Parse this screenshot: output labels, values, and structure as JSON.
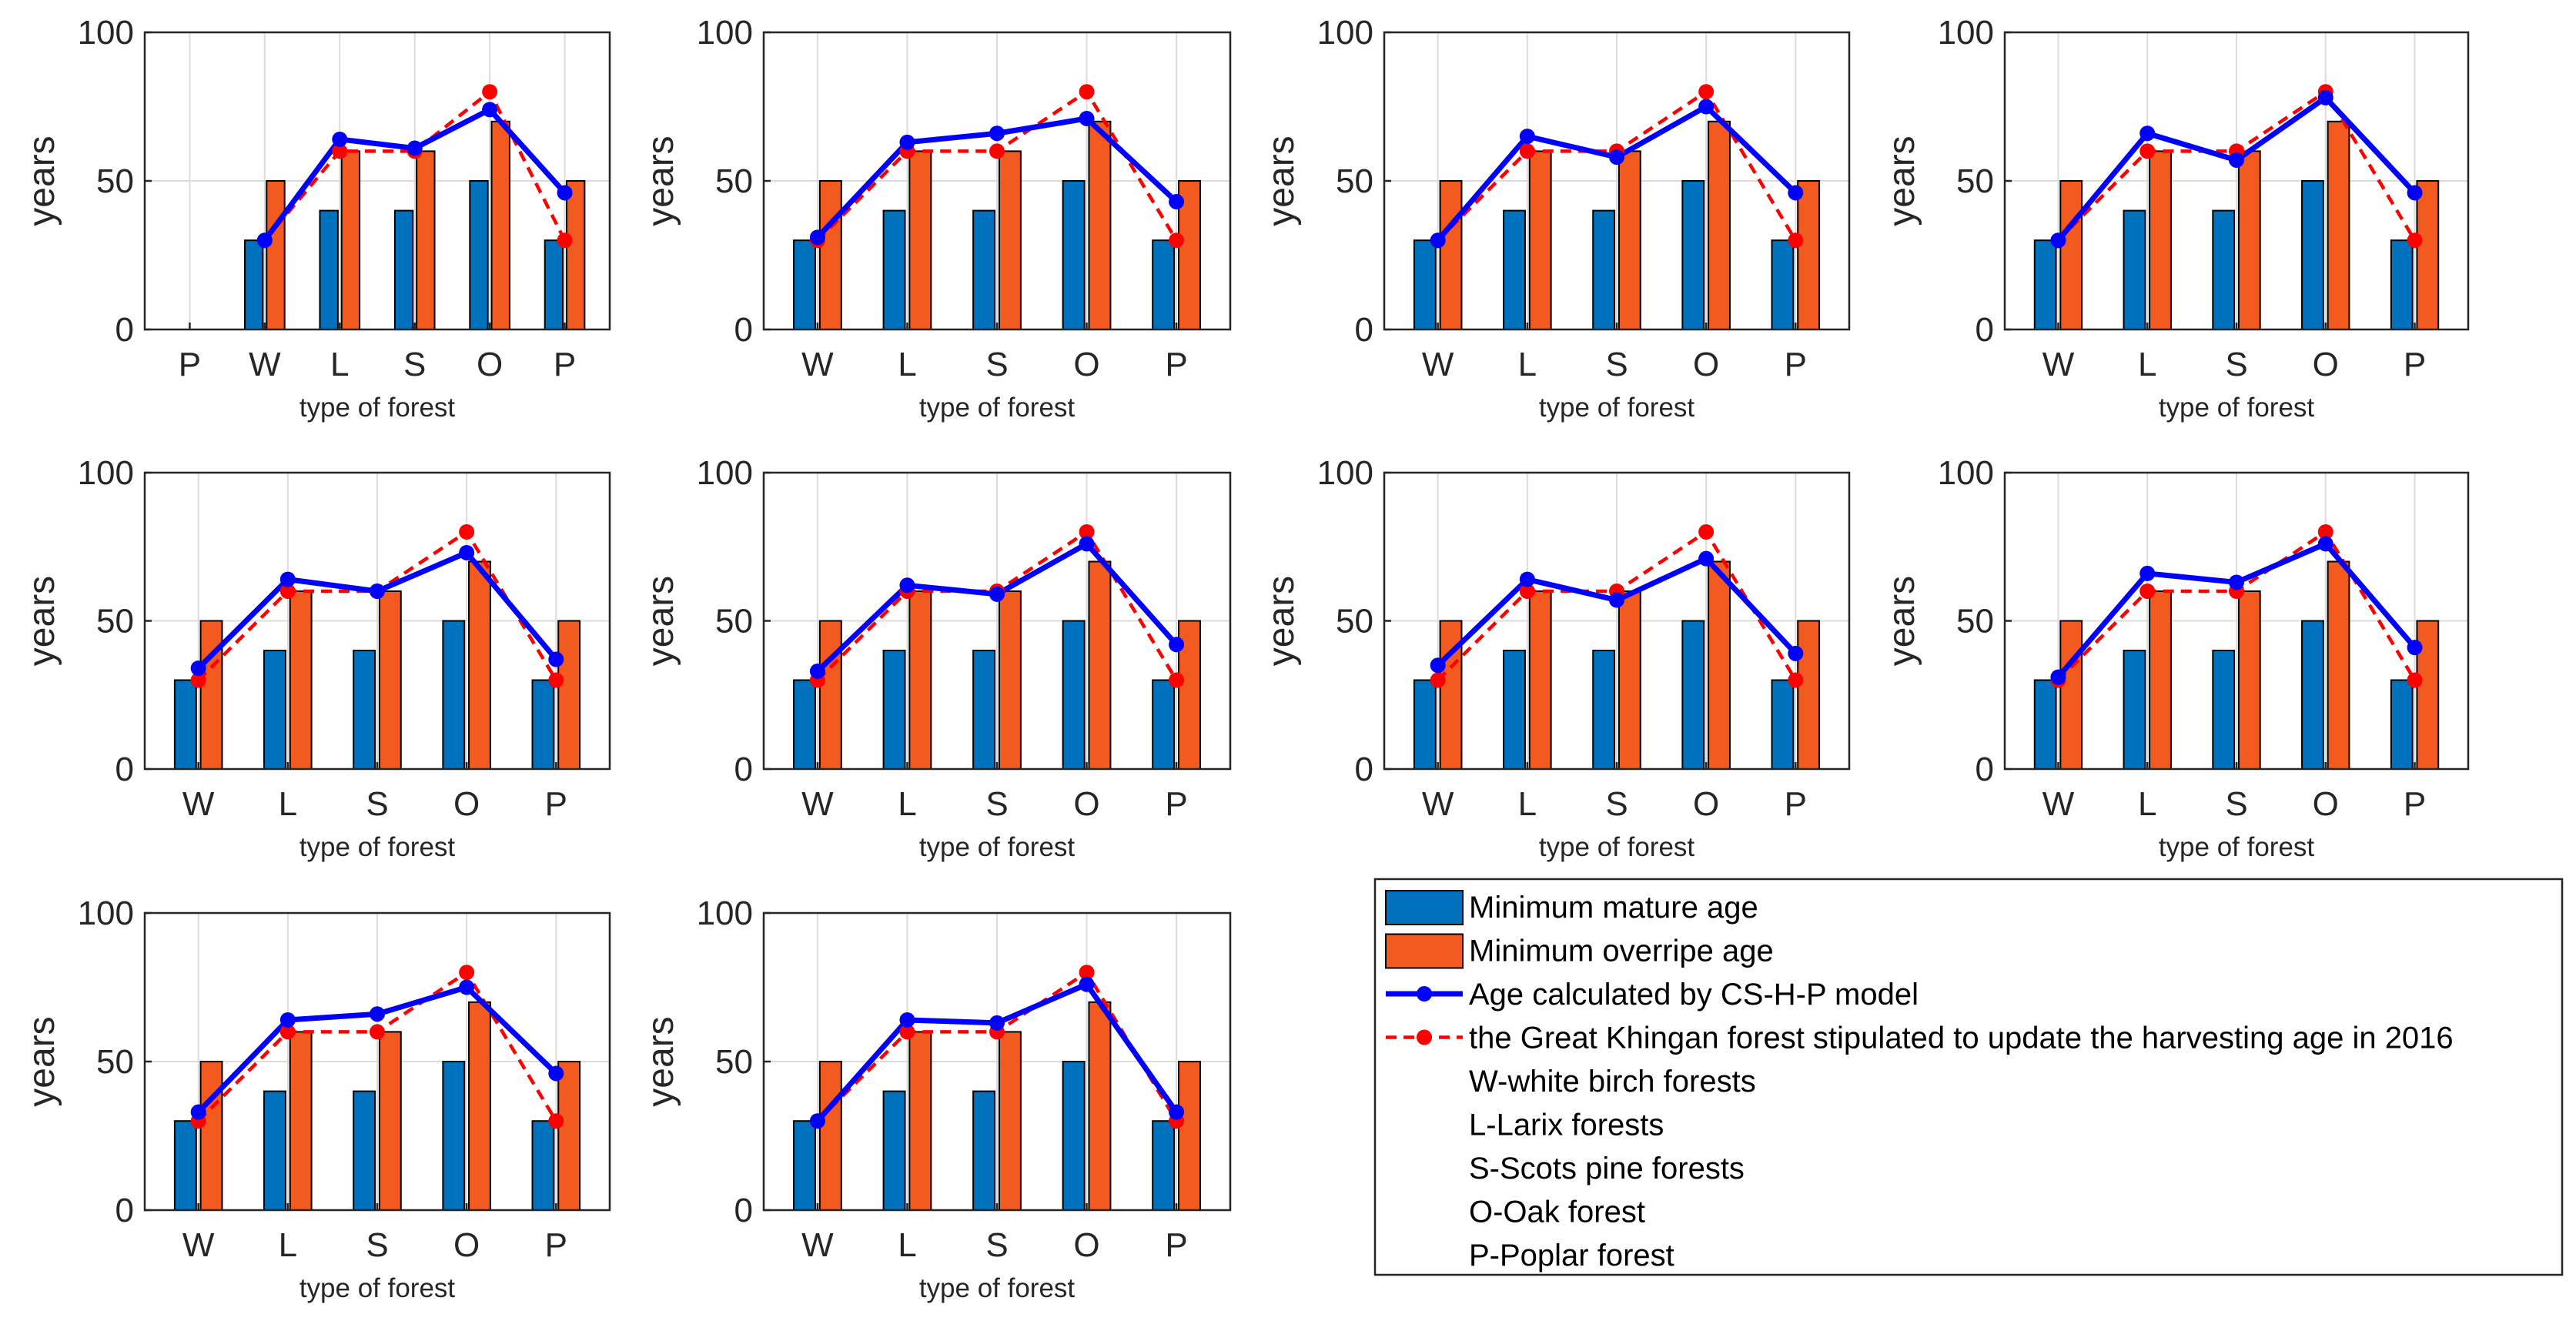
{
  "colors": {
    "mature": "#0072BD",
    "overripe": "#F25A1F",
    "model": "#0000FF",
    "stipulated": "#FF0000",
    "grid": "#DCDCDC",
    "axis": "#262626"
  },
  "chart_data": [
    {
      "type": "bar",
      "categories": [
        "P",
        "W",
        "L",
        "S",
        "O",
        "P"
      ],
      "mature": [
        null,
        30,
        40,
        40,
        50,
        30
      ],
      "overripe": [
        null,
        50,
        60,
        60,
        70,
        50
      ],
      "model": [
        null,
        30,
        64,
        61,
        74,
        46
      ],
      "stipulated": [
        null,
        30,
        60,
        60,
        80,
        30
      ],
      "xlabel": "type of forest",
      "ylabel": "years",
      "ylim": [
        0,
        100
      ],
      "yticks": [
        "0",
        "50",
        "100"
      ]
    },
    {
      "type": "bar",
      "categories": [
        "W",
        "L",
        "S",
        "O",
        "P"
      ],
      "mature": [
        30,
        40,
        40,
        50,
        30
      ],
      "overripe": [
        50,
        60,
        60,
        70,
        50
      ],
      "model": [
        31,
        63,
        66,
        71,
        43
      ],
      "stipulated": [
        30,
        60,
        60,
        80,
        30
      ],
      "xlabel": "type of forest",
      "ylabel": "years",
      "ylim": [
        0,
        100
      ],
      "yticks": [
        "0",
        "50",
        "100"
      ]
    },
    {
      "type": "bar",
      "categories": [
        "W",
        "L",
        "S",
        "O",
        "P"
      ],
      "mature": [
        30,
        40,
        40,
        50,
        30
      ],
      "overripe": [
        50,
        60,
        60,
        70,
        50
      ],
      "model": [
        30,
        65,
        58,
        75,
        46
      ],
      "stipulated": [
        30,
        60,
        60,
        80,
        30
      ],
      "xlabel": "type of forest",
      "ylabel": "years",
      "ylim": [
        0,
        100
      ],
      "yticks": [
        "0",
        "50",
        "100"
      ]
    },
    {
      "type": "bar",
      "categories": [
        "W",
        "L",
        "S",
        "O",
        "P"
      ],
      "mature": [
        30,
        40,
        40,
        50,
        30
      ],
      "overripe": [
        50,
        60,
        60,
        70,
        50
      ],
      "model": [
        30,
        66,
        57,
        78,
        46
      ],
      "stipulated": [
        30,
        60,
        60,
        80,
        30
      ],
      "xlabel": "type of forest",
      "ylabel": "years",
      "ylim": [
        0,
        100
      ],
      "yticks": [
        "0",
        "50",
        "100"
      ]
    },
    {
      "type": "bar",
      "categories": [
        "W",
        "L",
        "S",
        "O",
        "P"
      ],
      "mature": [
        30,
        40,
        40,
        50,
        30
      ],
      "overripe": [
        50,
        60,
        60,
        70,
        50
      ],
      "model": [
        34,
        64,
        60,
        73,
        37
      ],
      "stipulated": [
        30,
        60,
        60,
        80,
        30
      ],
      "xlabel": "type of forest",
      "ylabel": "years",
      "ylim": [
        0,
        100
      ],
      "yticks": [
        "0",
        "50",
        "100"
      ]
    },
    {
      "type": "bar",
      "categories": [
        "W",
        "L",
        "S",
        "O",
        "P"
      ],
      "mature": [
        30,
        40,
        40,
        50,
        30
      ],
      "overripe": [
        50,
        60,
        60,
        70,
        50
      ],
      "model": [
        33,
        62,
        59,
        76,
        42
      ],
      "stipulated": [
        30,
        60,
        60,
        80,
        30
      ],
      "xlabel": "type of forest",
      "ylabel": "years",
      "ylim": [
        0,
        100
      ],
      "yticks": [
        "0",
        "50",
        "100"
      ]
    },
    {
      "type": "bar",
      "categories": [
        "W",
        "L",
        "S",
        "O",
        "P"
      ],
      "mature": [
        30,
        40,
        40,
        50,
        30
      ],
      "overripe": [
        50,
        60,
        60,
        70,
        50
      ],
      "model": [
        35,
        64,
        57,
        71,
        39
      ],
      "stipulated": [
        30,
        60,
        60,
        80,
        30
      ],
      "xlabel": "type of forest",
      "ylabel": "years",
      "ylim": [
        0,
        100
      ],
      "yticks": [
        "0",
        "50",
        "100"
      ]
    },
    {
      "type": "bar",
      "categories": [
        "W",
        "L",
        "S",
        "O",
        "P"
      ],
      "mature": [
        30,
        40,
        40,
        50,
        30
      ],
      "overripe": [
        50,
        60,
        60,
        70,
        50
      ],
      "model": [
        31,
        66,
        63,
        76,
        41
      ],
      "stipulated": [
        30,
        60,
        60,
        80,
        30
      ],
      "xlabel": "type of forest",
      "ylabel": "years",
      "ylim": [
        0,
        100
      ],
      "yticks": [
        "0",
        "50",
        "100"
      ]
    },
    {
      "type": "bar",
      "categories": [
        "W",
        "L",
        "S",
        "O",
        "P"
      ],
      "mature": [
        30,
        40,
        40,
        50,
        30
      ],
      "overripe": [
        50,
        60,
        60,
        70,
        50
      ],
      "model": [
        33,
        64,
        66,
        75,
        46
      ],
      "stipulated": [
        30,
        60,
        60,
        80,
        30
      ],
      "xlabel": "type of forest",
      "ylabel": "years",
      "ylim": [
        0,
        100
      ],
      "yticks": [
        "0",
        "50",
        "100"
      ]
    },
    {
      "type": "bar",
      "categories": [
        "W",
        "L",
        "S",
        "O",
        "P"
      ],
      "mature": [
        30,
        40,
        40,
        50,
        30
      ],
      "overripe": [
        50,
        60,
        60,
        70,
        50
      ],
      "model": [
        30,
        64,
        63,
        76,
        33
      ],
      "stipulated": [
        30,
        60,
        60,
        80,
        30
      ],
      "xlabel": "type of forest",
      "ylabel": "years",
      "ylim": [
        0,
        100
      ],
      "yticks": [
        "0",
        "50",
        "100"
      ]
    }
  ],
  "legend": {
    "entries": [
      {
        "label": "Minimum mature age",
        "kind": "bar",
        "color": "#0072BD"
      },
      {
        "label": "Minimum overripe age",
        "kind": "bar",
        "color": "#F25A1F"
      },
      {
        "label": "Age calculated by CS-H-P model",
        "kind": "line",
        "color": "#0000FF"
      },
      {
        "label": "the Great Khingan forest stipulated to update the harvesting age in 2016",
        "kind": "dashed",
        "color": "#FF0000"
      },
      {
        "label": "W-white birch forests",
        "kind": "text"
      },
      {
        "label": "L-Larix forests",
        "kind": "text"
      },
      {
        "label": "S-Scots pine forests",
        "kind": "text"
      },
      {
        "label": "O-Oak forest",
        "kind": "text"
      },
      {
        "label": "P-Poplar forest",
        "kind": "text"
      }
    ]
  }
}
